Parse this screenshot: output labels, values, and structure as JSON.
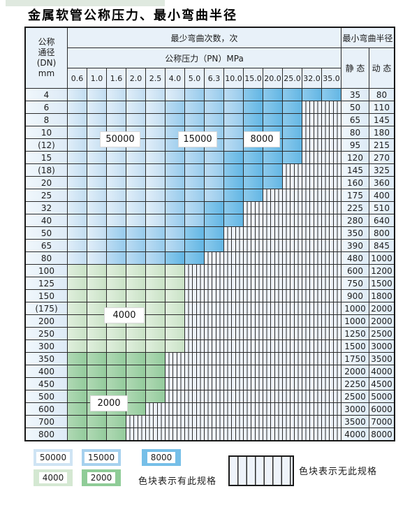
{
  "title": "金属软管公称压力、最小弯曲半径",
  "table": {
    "dn_header_lines": [
      "公称",
      "通径",
      "(DN)",
      "mm"
    ],
    "cycles_header": "最少弯曲次数，次",
    "pressure_header": "公称压力（PN）MPa",
    "radius_header": "最小弯曲半径",
    "static_header": "静 态",
    "dynamic_header": "动 态",
    "pn_columns": [
      "0.6",
      "1.0",
      "1.6",
      "2.0",
      "2.5",
      "4.0",
      "5.0",
      "6.3",
      "10.0",
      "15.0",
      "20.0",
      "25.0",
      "32.0",
      "35.0"
    ],
    "cell_code_meaning": {
      "5": "50000次",
      "1": "15000次",
      "8": "8000次",
      "4": "4000次",
      "2": "2000次",
      "x": "无此规格"
    },
    "rows": [
      {
        "dn": "4",
        "cells": "55555511188888",
        "static": "35",
        "dynamic": "80"
      },
      {
        "dn": "6",
        "cells": "555551111888xx",
        "static": "50",
        "dynamic": "110"
      },
      {
        "dn": "8",
        "cells": "555551111888xx",
        "static": "65",
        "dynamic": "145"
      },
      {
        "dn": "10",
        "cells": "555551111888xx",
        "static": "80",
        "dynamic": "180"
      },
      {
        "dn": "(12)",
        "cells": "555551111888xx",
        "static": "95",
        "dynamic": "215"
      },
      {
        "dn": "15",
        "cells": "555551118888xx",
        "static": "120",
        "dynamic": "270"
      },
      {
        "dn": "(18)",
        "cells": "55555111888xxx",
        "static": "145",
        "dynamic": "325"
      },
      {
        "dn": "20",
        "cells": "55555111888xxx",
        "static": "160",
        "dynamic": "360"
      },
      {
        "dn": "25",
        "cells": "5555511188xxxx",
        "static": "175",
        "dynamic": "400"
      },
      {
        "dn": "32",
        "cells": "555551188xxxxx",
        "static": "225",
        "dynamic": "510"
      },
      {
        "dn": "40",
        "cells": "555551188xxxxx",
        "static": "280",
        "dynamic": "640"
      },
      {
        "dn": "50",
        "cells": "55111188xxxxxx",
        "static": "350",
        "dynamic": "800"
      },
      {
        "dn": "65",
        "cells": "55111188xxxxxx",
        "static": "390",
        "dynamic": "845"
      },
      {
        "dn": "80",
        "cells": "5511188xxxxxxx",
        "static": "480",
        "dynamic": "1000"
      },
      {
        "dn": "100",
        "cells": "444444xxxxxxxx",
        "static": "600",
        "dynamic": "1200"
      },
      {
        "dn": "125",
        "cells": "444444xxxxxxxx",
        "static": "750",
        "dynamic": "1500"
      },
      {
        "dn": "150",
        "cells": "444444xxxxxxxx",
        "static": "900",
        "dynamic": "1800"
      },
      {
        "dn": "(175)",
        "cells": "444444xxxxxxxx",
        "static": "1000",
        "dynamic": "2000"
      },
      {
        "dn": "200",
        "cells": "444444xxxxxxxx",
        "static": "1000",
        "dynamic": "2000"
      },
      {
        "dn": "250",
        "cells": "444444xxxxxxxx",
        "static": "1250",
        "dynamic": "2500"
      },
      {
        "dn": "300",
        "cells": "444444xxxxxxxx",
        "static": "1500",
        "dynamic": "3000"
      },
      {
        "dn": "350",
        "cells": "22222xxxxxxxxx",
        "static": "1750",
        "dynamic": "3500"
      },
      {
        "dn": "400",
        "cells": "22222xxxxxxxxx",
        "static": "2000",
        "dynamic": "4000"
      },
      {
        "dn": "450",
        "cells": "22222xxxxxxxxx",
        "static": "2250",
        "dynamic": "4500"
      },
      {
        "dn": "500",
        "cells": "22222xxxxxxxxx",
        "static": "2500",
        "dynamic": "5000"
      },
      {
        "dn": "600",
        "cells": "2222xxxxxxxxxx",
        "static": "3000",
        "dynamic": "6000"
      },
      {
        "dn": "700",
        "cells": "222xxxxxxxxxxx",
        "static": "3500",
        "dynamic": "7000"
      },
      {
        "dn": "800",
        "cells": "222xxxxxxxxxxx",
        "static": "4000",
        "dynamic": "8000"
      }
    ],
    "region_labels": [
      {
        "text": "50000"
      },
      {
        "text": "15000"
      },
      {
        "text": "8000"
      },
      {
        "text": "4000"
      },
      {
        "text": "2000"
      }
    ]
  },
  "legend": {
    "blue_items": [
      {
        "label": "50000"
      },
      {
        "label": "15000"
      },
      {
        "label": "8000"
      }
    ],
    "green_items": [
      {
        "label": "4000"
      },
      {
        "label": "2000"
      }
    ],
    "available_text": "色块表示有此规格",
    "unavailable_text": "色块表示无此规格"
  },
  "colors": {
    "cycles_50000": "#cfe4f4",
    "cycles_15000": "#a6d1ee",
    "cycles_8000": "#74bfe8",
    "cycles_4000": "#d4e8d2",
    "cycles_2000": "#9fd0a4",
    "striped_bg": "#eef3fa",
    "grid_line": "#2b2b2b",
    "header_bg": "#e8f1f9"
  }
}
